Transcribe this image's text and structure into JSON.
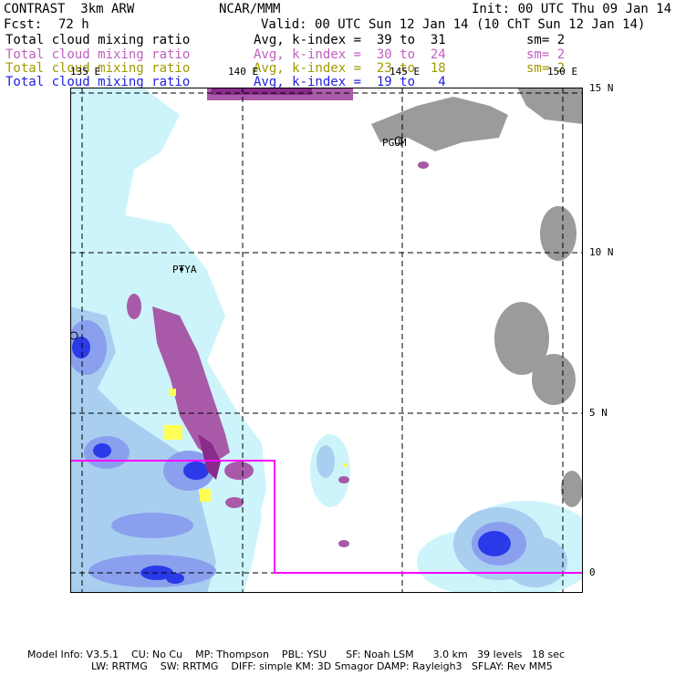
{
  "header": {
    "model": "CONTRAST  3km ARW",
    "org": "NCAR/MMM",
    "init": "Init: 00 UTC Thu 09 Jan 14",
    "fcst_label": "Fcst:",
    "fcst_value": "72 h",
    "valid": "Valid: 00 UTC Sun 12 Jan 14 (10 ChT Sun 12 Jan 14)"
  },
  "legend": [
    {
      "field": "Total cloud mixing ratio",
      "stat": "Avg, k-index =  39 to  31",
      "sm": "sm= 2",
      "color": "#000000"
    },
    {
      "field": "Total cloud mixing ratio",
      "stat": "Avg, k-index =  30 to  24",
      "sm": "sm= 2",
      "color": "#c060c0"
    },
    {
      "field": "Total cloud mixing ratio",
      "stat": "Avg, k-index =  23 to  18",
      "sm": "sm= 2",
      "color": "#a09a00"
    },
    {
      "field": "Total cloud mixing ratio",
      "stat": "Avg, k-index =  19 to   4",
      "sm": "",
      "color": "#2020e0"
    }
  ],
  "map": {
    "lon_labels": [
      "135 E",
      "140 E",
      "145 E",
      "150 E"
    ],
    "lat_labels": [
      "15 N",
      "10 N",
      "5 N",
      "0"
    ],
    "stations": [
      "PGUM",
      "PTYA"
    ],
    "colors": {
      "gray_cloud": "#9b9b9b",
      "purple_cloud": "#a85aa8",
      "dark_purple": "#8a2a8a",
      "yellow_cloud": "#ffff55",
      "pale_cyan": "#cdf4fb",
      "light_blue": "#a9cff0",
      "mid_blue": "#8aa0ee",
      "deep_blue": "#2a3ae8",
      "domain_box": "#ff00ff"
    }
  },
  "footer": {
    "line1": "Model Info: V3.5.1    CU: No Cu    MP: Thompson    PBL: YSU      SF: Noah LSM      3.0 km   39 levels   18 sec",
    "line2": "LW: RRTMG    SW: RRTMG    DIFF: simple KM: 3D Smagor DAMP: Rayleigh3   SFLAY: Rev MM5"
  }
}
